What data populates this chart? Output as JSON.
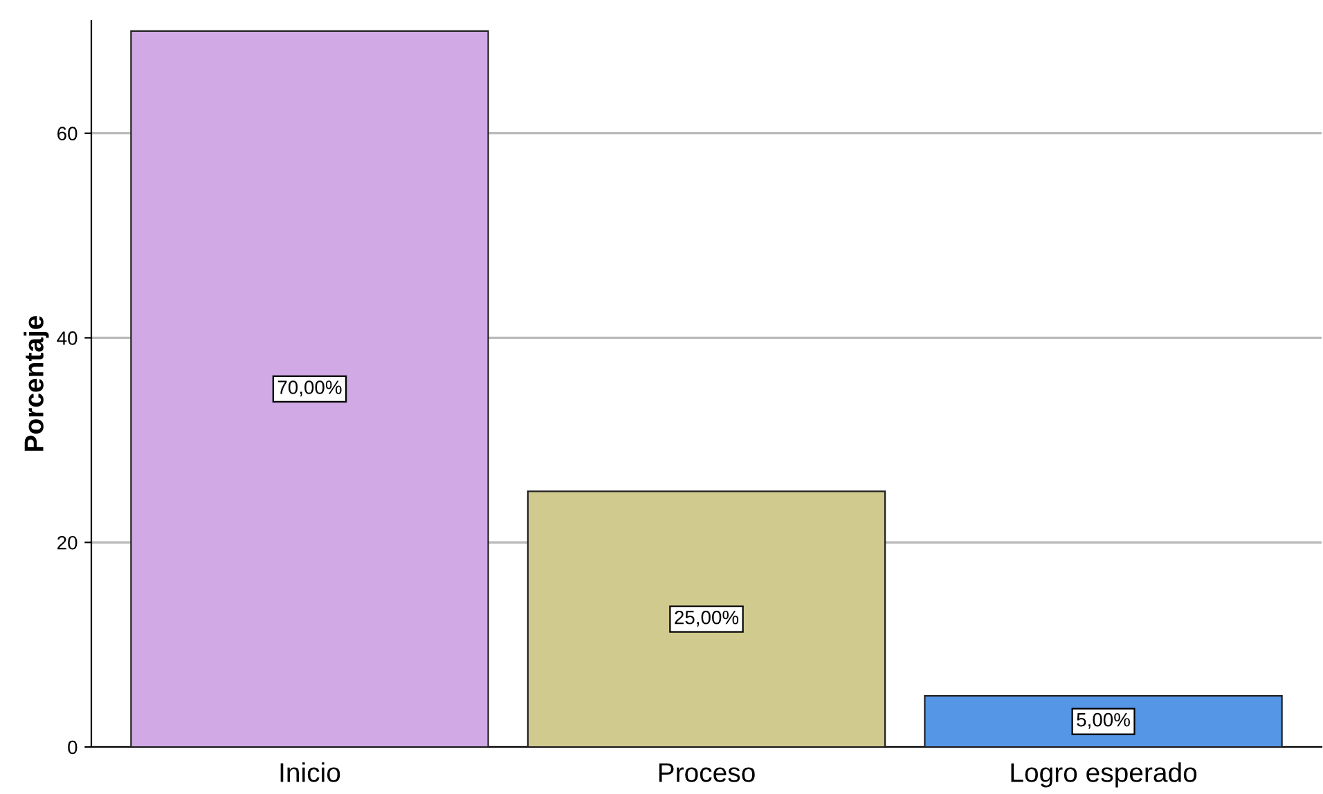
{
  "chart_data": {
    "type": "bar",
    "ylabel": "Porcentaje",
    "categories": [
      "Inicio",
      "Proceso",
      "Logro esperado"
    ],
    "values": [
      70,
      25,
      5
    ],
    "colors": [
      "#d0a9e5",
      "#d0ca8f",
      "#5596e6"
    ],
    "value_labels": [
      "70,00%",
      "25,00%",
      "5,00%"
    ],
    "ylim": [
      0,
      71
    ],
    "yticks": [
      0,
      20,
      40,
      60
    ],
    "grid": "y"
  }
}
